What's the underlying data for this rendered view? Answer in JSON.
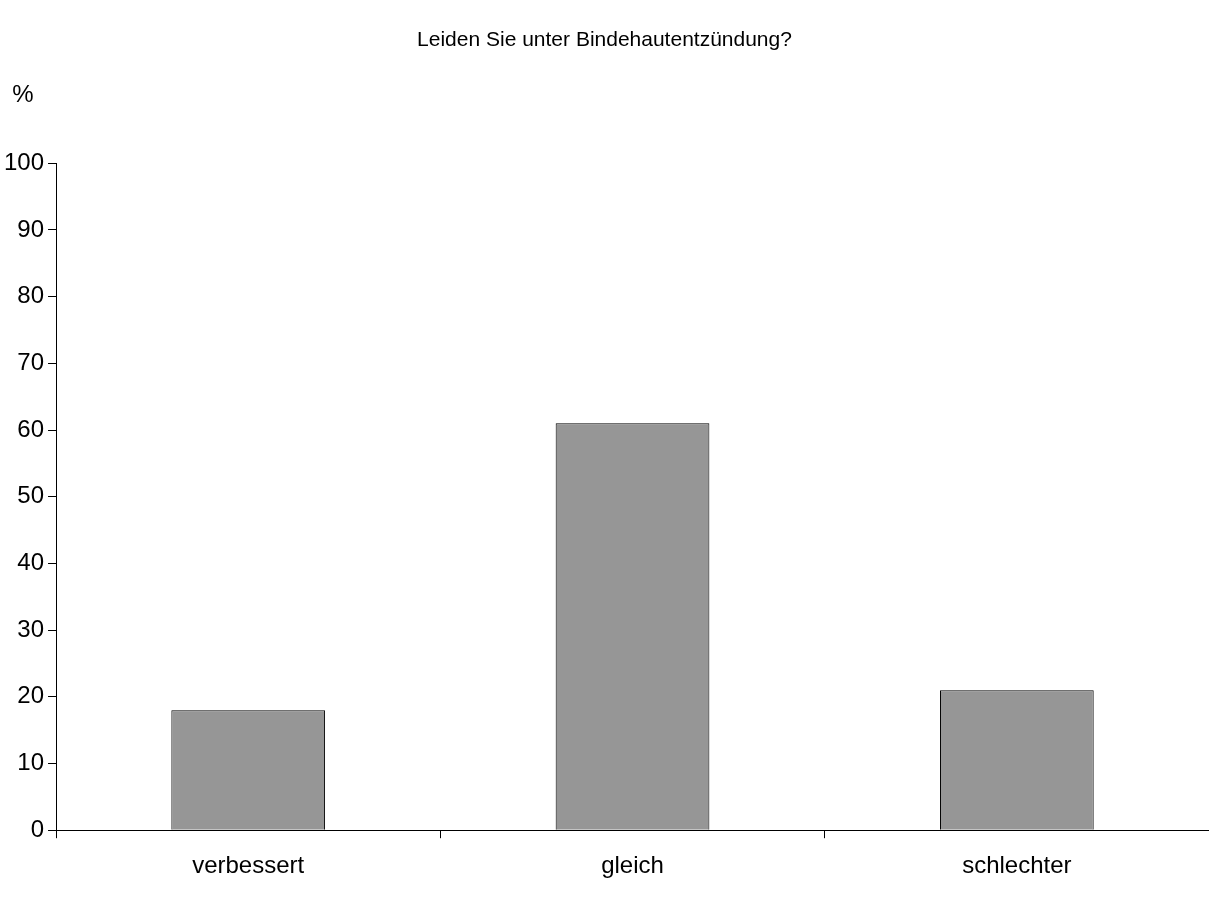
{
  "chart_data": {
    "type": "bar",
    "title": "Leiden Sie unter Bindehautentzündung?",
    "ylabel": "%",
    "categories": [
      "verbessert",
      "gleich",
      "schlechter"
    ],
    "values": [
      18,
      61,
      21
    ],
    "color": "#969696",
    "ylim": [
      0,
      100
    ],
    "yticks": [
      0,
      10,
      20,
      30,
      40,
      50,
      60,
      70,
      80,
      90,
      100
    ],
    "grid": false,
    "legend": false
  }
}
